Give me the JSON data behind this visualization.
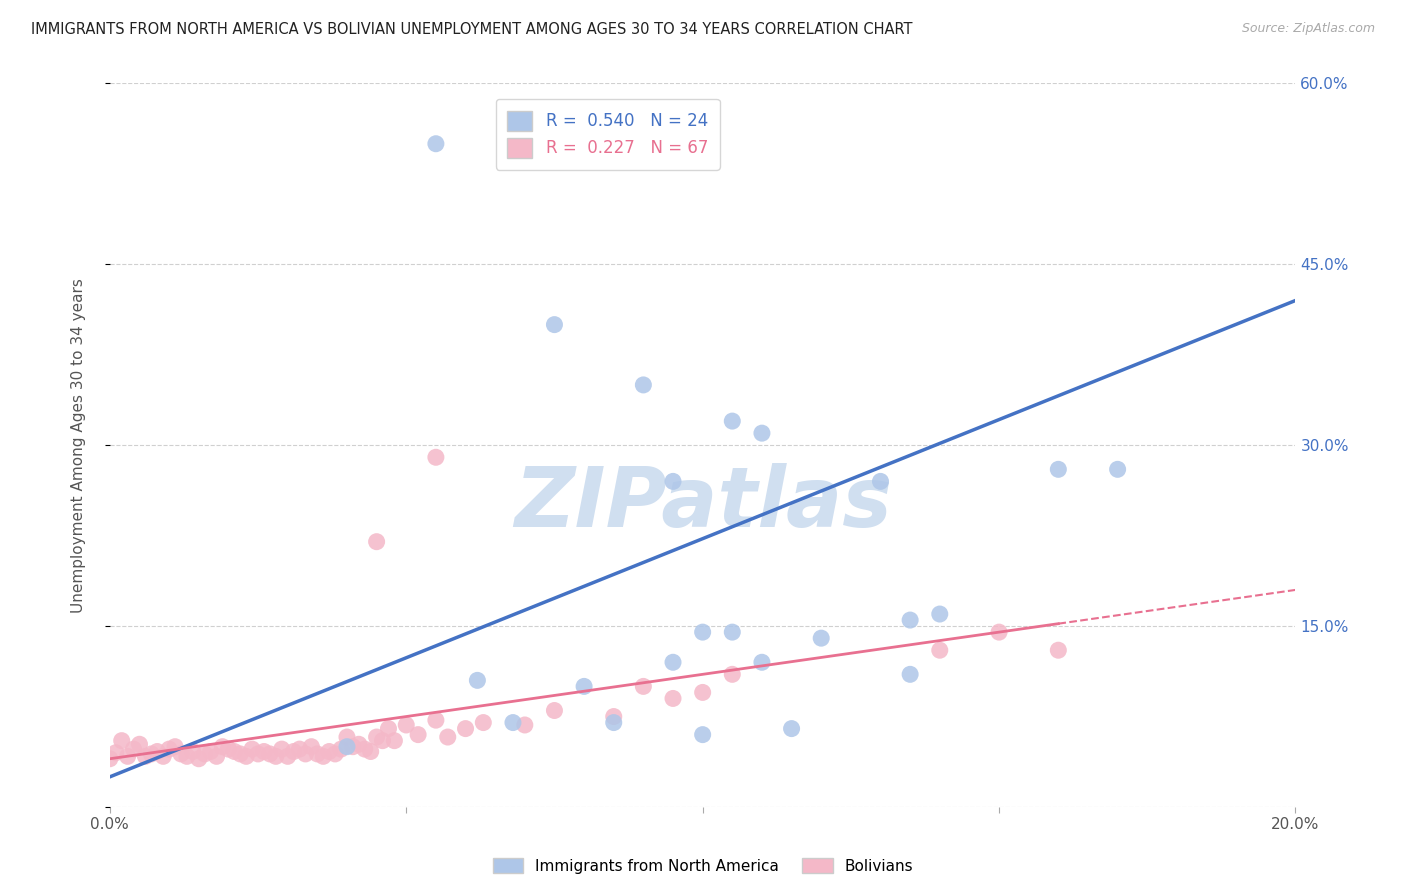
{
  "title": "IMMIGRANTS FROM NORTH AMERICA VS BOLIVIAN UNEMPLOYMENT AMONG AGES 30 TO 34 YEARS CORRELATION CHART",
  "source": "Source: ZipAtlas.com",
  "ylabel": "Unemployment Among Ages 30 to 34 years",
  "legend_labels": [
    "Immigrants from North America",
    "Bolivians"
  ],
  "r_blue": 0.54,
  "n_blue": 24,
  "r_pink": 0.227,
  "n_pink": 67,
  "xlim": [
    0.0,
    0.2
  ],
  "ylim": [
    0.0,
    0.6
  ],
  "x_ticks": [
    0.0,
    0.05,
    0.1,
    0.15,
    0.2
  ],
  "y_ticks": [
    0.0,
    0.15,
    0.3,
    0.45,
    0.6
  ],
  "blue_scatter_x": [
    0.04,
    0.055,
    0.062,
    0.068,
    0.075,
    0.08,
    0.085,
    0.09,
    0.095,
    0.1,
    0.105,
    0.11,
    0.115,
    0.12,
    0.13,
    0.135,
    0.14,
    0.095,
    0.105,
    0.11,
    0.16,
    0.1,
    0.135,
    0.17
  ],
  "blue_scatter_y": [
    0.05,
    0.55,
    0.105,
    0.07,
    0.4,
    0.1,
    0.07,
    0.35,
    0.27,
    0.06,
    0.145,
    0.12,
    0.065,
    0.14,
    0.27,
    0.11,
    0.16,
    0.12,
    0.32,
    0.31,
    0.28,
    0.145,
    0.155,
    0.28
  ],
  "pink_scatter_x": [
    0.0,
    0.001,
    0.002,
    0.003,
    0.004,
    0.005,
    0.006,
    0.007,
    0.008,
    0.009,
    0.01,
    0.011,
    0.012,
    0.013,
    0.014,
    0.015,
    0.016,
    0.017,
    0.018,
    0.019,
    0.02,
    0.021,
    0.022,
    0.023,
    0.024,
    0.025,
    0.026,
    0.027,
    0.028,
    0.029,
    0.03,
    0.031,
    0.032,
    0.033,
    0.034,
    0.035,
    0.036,
    0.037,
    0.038,
    0.039,
    0.04,
    0.041,
    0.042,
    0.043,
    0.044,
    0.045,
    0.046,
    0.047,
    0.048,
    0.05,
    0.052,
    0.055,
    0.057,
    0.06,
    0.063,
    0.07,
    0.075,
    0.085,
    0.09,
    0.095,
    0.1,
    0.105,
    0.14,
    0.15,
    0.16,
    0.055,
    0.045
  ],
  "pink_scatter_y": [
    0.04,
    0.045,
    0.055,
    0.042,
    0.048,
    0.052,
    0.042,
    0.044,
    0.046,
    0.042,
    0.048,
    0.05,
    0.044,
    0.042,
    0.046,
    0.04,
    0.044,
    0.046,
    0.042,
    0.05,
    0.048,
    0.046,
    0.044,
    0.042,
    0.048,
    0.044,
    0.046,
    0.044,
    0.042,
    0.048,
    0.042,
    0.046,
    0.048,
    0.044,
    0.05,
    0.044,
    0.042,
    0.046,
    0.044,
    0.048,
    0.058,
    0.05,
    0.052,
    0.048,
    0.046,
    0.058,
    0.055,
    0.065,
    0.055,
    0.068,
    0.06,
    0.072,
    0.058,
    0.065,
    0.07,
    0.068,
    0.08,
    0.075,
    0.1,
    0.09,
    0.095,
    0.11,
    0.13,
    0.145,
    0.13,
    0.29,
    0.22
  ],
  "blue_color": "#aec6e8",
  "pink_color": "#f4b8c8",
  "blue_line_color": "#4472c4",
  "pink_line_color": "#e87090",
  "background_color": "#ffffff",
  "grid_color": "#d0d0d0",
  "watermark_color": "#d0dff0"
}
